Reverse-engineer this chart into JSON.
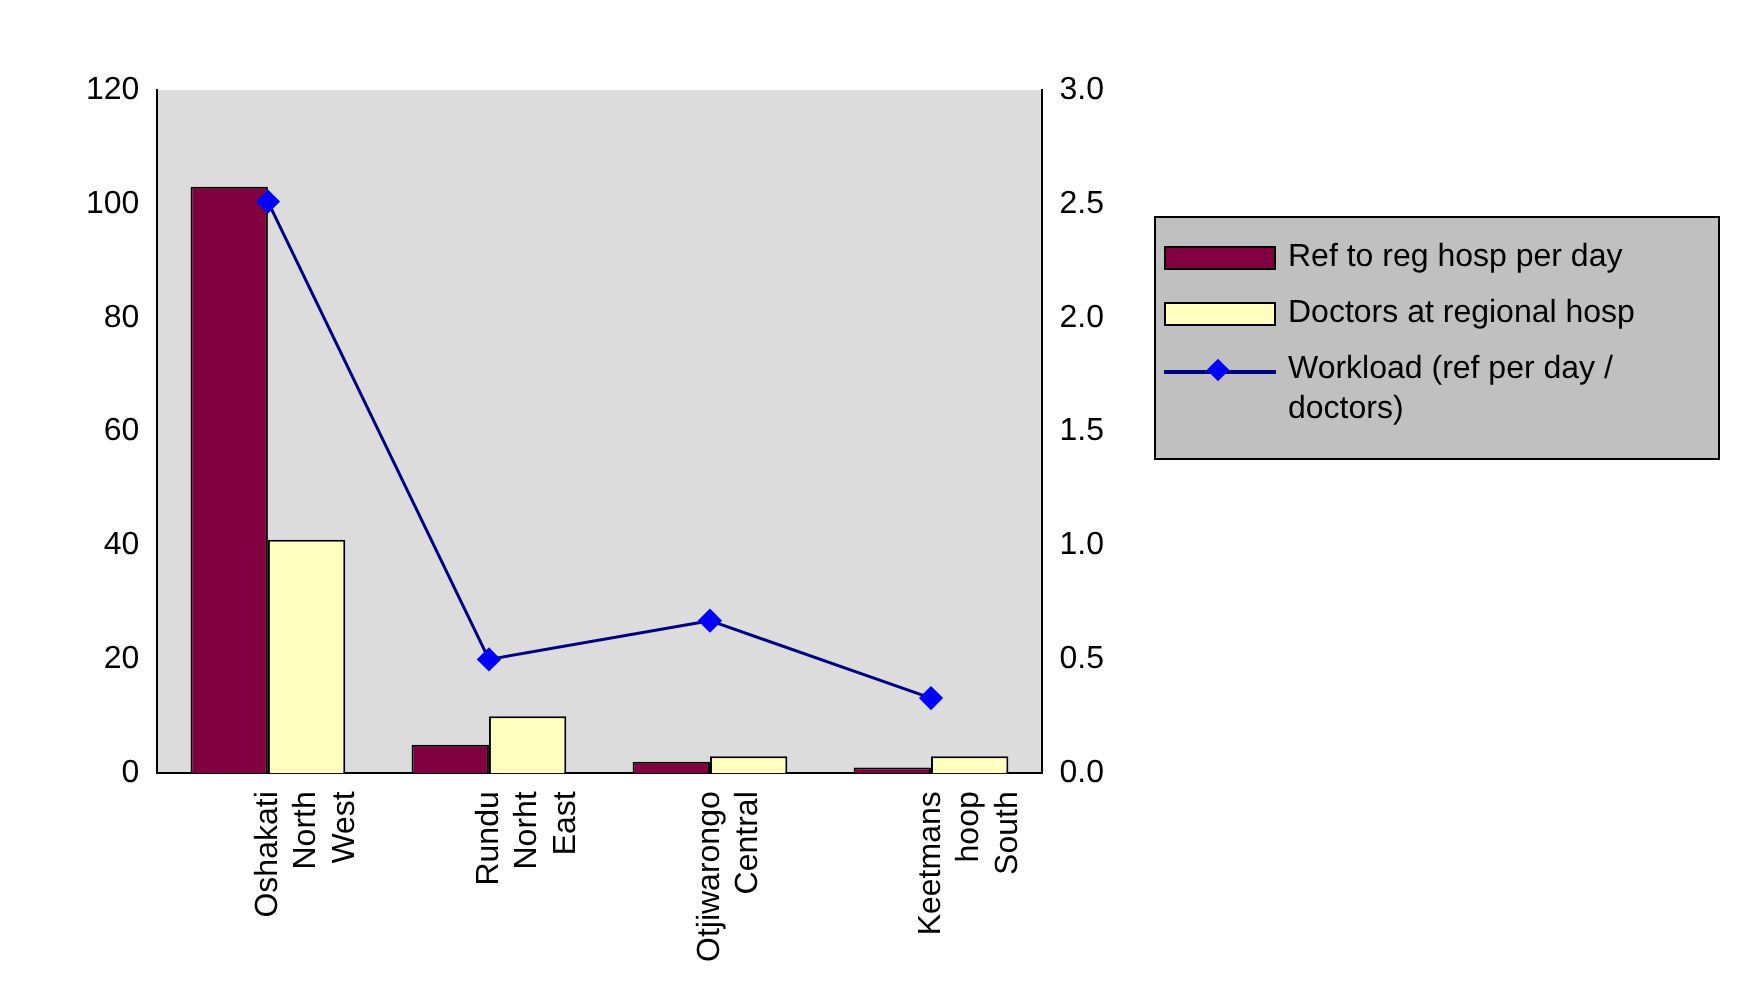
{
  "chart_data": {
    "type": "bar",
    "categories": [
      "Oshakati North West",
      "Rundu Norht East",
      "Otjiwarongo Central",
      "Keetmans hoop South"
    ],
    "series": [
      {
        "name": "Ref to reg hosp per day",
        "color": "#800040",
        "values": [
          103,
          5,
          2,
          1
        ]
      },
      {
        "name": "Doctors at regional hosp",
        "color": "#ffffc0",
        "values": [
          41,
          10,
          3,
          3
        ]
      },
      {
        "name": "Workload (ref per day / doctors)",
        "type": "line",
        "axis": "y2",
        "color": "#000080",
        "values": [
          2.51,
          0.5,
          0.67,
          0.33
        ]
      }
    ],
    "ylim": [
      0,
      120
    ],
    "yticks": [
      0,
      20,
      40,
      60,
      80,
      100,
      120
    ],
    "y2lim": [
      0,
      3
    ],
    "y2ticks": [
      {
        "value": 0,
        "label": "0.0"
      },
      {
        "value": 0.5,
        "label": "0.5"
      },
      {
        "value": 1,
        "label": "1.0"
      },
      {
        "value": 1.5,
        "label": "1.5"
      },
      {
        "value": 2,
        "label": "2.0"
      },
      {
        "value": 2.5,
        "label": "2.5"
      },
      {
        "value": 3,
        "label": "3.0"
      }
    ],
    "grid": false,
    "legend": "right",
    "marker": "diamond",
    "line_style": "solid"
  }
}
